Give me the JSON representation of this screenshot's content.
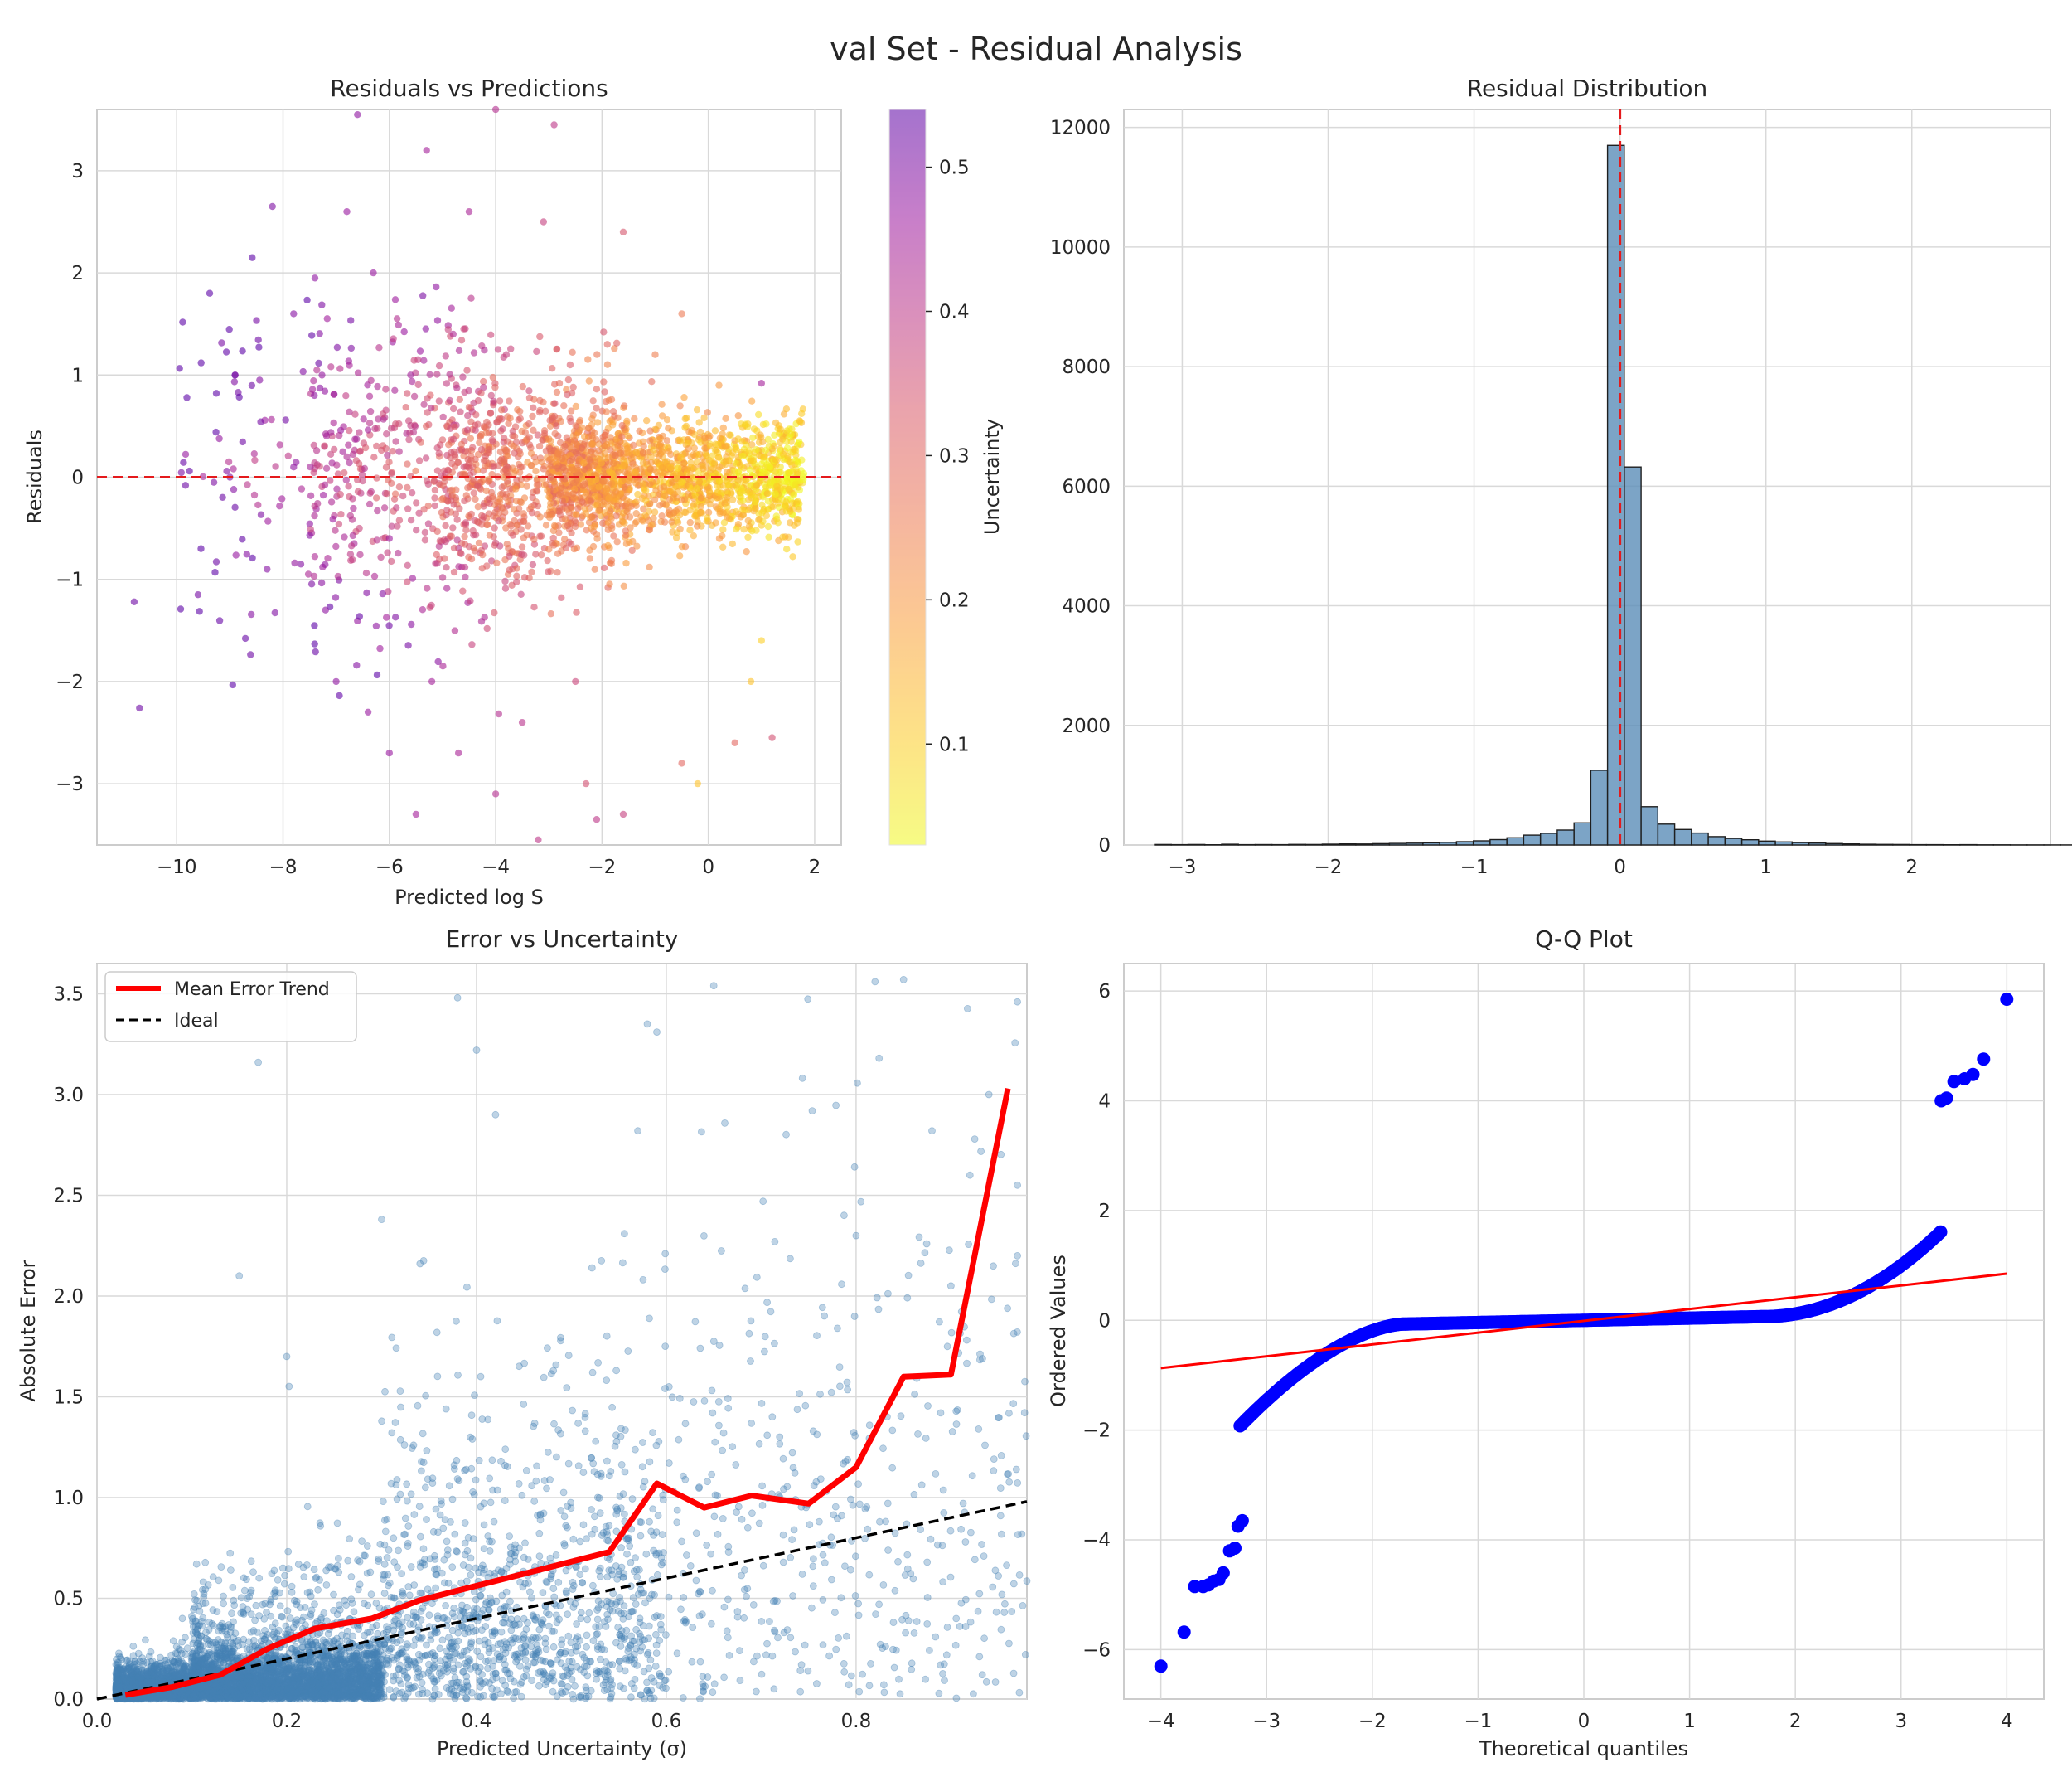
{
  "figure": {
    "suptitle": "val Set - Residual Analysis"
  },
  "chart_data": [
    {
      "type": "scatter",
      "id": "p1",
      "title": "Residuals vs Predictions",
      "xlabel": "Predicted log S",
      "ylabel": "Residuals",
      "xlim": [
        -11.5,
        2.5
      ],
      "ylim": [
        -3.6,
        3.6
      ],
      "xticks": [
        -10,
        -8,
        -6,
        -4,
        -2,
        0,
        2
      ],
      "yticks": [
        -3,
        -2,
        -1,
        0,
        1,
        2,
        3
      ],
      "grid": true,
      "reference_line": {
        "y": 0,
        "color": "#e41a1c",
        "style": "dashed"
      },
      "colorbar": {
        "label": "Uncertainty",
        "range": [
          0.03,
          0.54
        ],
        "ticks": [
          0.1,
          0.2,
          0.3,
          0.4,
          0.5
        ],
        "colormap": "plasma_r"
      },
      "points": [
        [
          -10.8,
          -1.22,
          0.52
        ],
        [
          -10.7,
          -2.26,
          0.52
        ],
        [
          -8.9,
          1.0,
          0.5
        ],
        [
          -8.2,
          2.65,
          0.5
        ],
        [
          -7.4,
          1.95,
          0.48
        ],
        [
          -6.3,
          2.0,
          0.47
        ],
        [
          -6.6,
          3.55,
          0.48
        ],
        [
          -7.8,
          1.6,
          0.49
        ],
        [
          -6.8,
          2.6,
          0.47
        ],
        [
          -5.3,
          3.2,
          0.45
        ],
        [
          -4.0,
          3.6,
          0.42
        ],
        [
          -2.9,
          3.45,
          0.4
        ],
        [
          -4.5,
          2.6,
          0.44
        ],
        [
          -3.1,
          2.5,
          0.38
        ],
        [
          -1.6,
          2.4,
          0.34
        ],
        [
          -5.6,
          1.0,
          0.45
        ],
        [
          -4.8,
          1.4,
          0.43
        ],
        [
          -3.8,
          1.2,
          0.38
        ],
        [
          -2.6,
          1.1,
          0.33
        ],
        [
          -1.9,
          1.3,
          0.3
        ],
        [
          -1.0,
          1.2,
          0.25
        ],
        [
          0.2,
          0.9,
          0.2
        ],
        [
          1.0,
          0.92,
          0.45
        ],
        [
          -0.5,
          1.6,
          0.26
        ],
        [
          -7.8,
          0.1,
          0.48
        ],
        [
          -9.0,
          0.0,
          0.5
        ],
        [
          -9.3,
          -0.05,
          0.5
        ],
        [
          -6.0,
          -0.6,
          0.46
        ],
        [
          -7.2,
          -1.3,
          0.48
        ],
        [
          -8.3,
          -0.9,
          0.49
        ],
        [
          -9.6,
          -1.15,
          0.51
        ],
        [
          -6.4,
          -2.3,
          0.47
        ],
        [
          -6.0,
          -2.7,
          0.47
        ],
        [
          -4.7,
          -2.7,
          0.44
        ],
        [
          -5.5,
          -3.3,
          0.45
        ],
        [
          -4.0,
          -3.1,
          0.42
        ],
        [
          -3.2,
          -3.55,
          0.4
        ],
        [
          -2.1,
          -3.35,
          0.4
        ],
        [
          -1.6,
          -3.3,
          0.38
        ],
        [
          -2.3,
          -3.0,
          0.35
        ],
        [
          -0.2,
          -3.0,
          0.12
        ],
        [
          -0.5,
          -2.8,
          0.3
        ],
        [
          0.5,
          -2.6,
          0.3
        ],
        [
          1.2,
          -2.55,
          0.35
        ],
        [
          0.8,
          -2.0,
          0.12
        ],
        [
          1.0,
          -1.6,
          0.1
        ],
        [
          -7.0,
          -2.0,
          0.48
        ],
        [
          -5.2,
          -2.0,
          0.45
        ],
        [
          -3.5,
          -2.4,
          0.41
        ],
        [
          -2.5,
          -2.0,
          0.37
        ]
      ],
      "density": {
        "core": [
          {
            "xr": [
              -3.0,
              1.8
            ],
            "yc": 0.0,
            "sd": 0.28,
            "n": 1500
          },
          {
            "xr": [
              -5.0,
              -1.5
            ],
            "yc": 0.0,
            "sd": 0.5,
            "n": 700
          },
          {
            "xr": [
              -7.5,
              -3.5
            ],
            "yc": 0.0,
            "sd": 0.75,
            "n": 380
          },
          {
            "xr": [
              -10.0,
              -5.5
            ],
            "yc": 0.0,
            "sd": 0.9,
            "n": 120
          }
        ]
      }
    },
    {
      "type": "bar",
      "id": "p2",
      "title": "Residual Distribution",
      "xlabel": "",
      "ylabel": "",
      "xlim": [
        -3.4,
        2.95
      ],
      "ylim": [
        0,
        12300
      ],
      "xticks": [
        -3,
        -2,
        -1,
        0,
        1,
        2
      ],
      "yticks": [
        0,
        2000,
        4000,
        6000,
        8000,
        10000,
        12000
      ],
      "grid": true,
      "bin_width": 0.115,
      "bin_start": -3.19,
      "counts": [
        8,
        6,
        8,
        4,
        12,
        5,
        7,
        6,
        10,
        9,
        14,
        18,
        16,
        22,
        26,
        30,
        36,
        45,
        55,
        70,
        90,
        120,
        165,
        195,
        250,
        370,
        1250,
        11700,
        6320,
        640,
        350,
        260,
        200,
        140,
        110,
        88,
        65,
        52,
        40,
        32,
        24,
        18,
        12,
        10,
        8,
        6,
        5,
        4,
        6,
        3,
        3,
        2,
        2,
        2,
        2
      ],
      "bar_color": "#5b8db8",
      "reference_line": {
        "x": 0,
        "color": "#e41a1c",
        "style": "dashed"
      }
    },
    {
      "type": "scatter",
      "id": "p3",
      "title": "Error vs Uncertainty",
      "xlabel": "Predicted Uncertainty (σ)",
      "ylabel": "Absolute Error",
      "xlim": [
        0.0,
        0.98
      ],
      "ylim": [
        0.0,
        3.65
      ],
      "xticks": [
        0.0,
        0.2,
        0.4,
        0.6,
        0.8
      ],
      "yticks": [
        0.0,
        0.5,
        1.0,
        1.5,
        2.0,
        2.5,
        3.0,
        3.5
      ],
      "grid": true,
      "legend": {
        "placement": "top-left",
        "entries": [
          "Mean Error Trend",
          "Ideal"
        ]
      },
      "series": [
        {
          "name": "Mean Error Trend",
          "color": "#ff0000",
          "x": [
            0.03,
            0.08,
            0.13,
            0.18,
            0.23,
            0.29,
            0.34,
            0.39,
            0.44,
            0.49,
            0.54,
            0.59,
            0.64,
            0.69,
            0.75,
            0.8,
            0.85,
            0.9,
            0.96
          ],
          "y": [
            0.02,
            0.06,
            0.12,
            0.25,
            0.35,
            0.4,
            0.49,
            0.55,
            0.61,
            0.67,
            0.73,
            1.07,
            0.95,
            1.01,
            0.97,
            1.15,
            1.6,
            1.61,
            3.03
          ]
        },
        {
          "name": "Ideal",
          "color": "#000000",
          "style": "dashed",
          "x": [
            0.0,
            0.98
          ],
          "y": [
            0.0,
            0.98
          ]
        }
      ],
      "points": [
        [
          0.17,
          3.16
        ],
        [
          0.38,
          3.48
        ],
        [
          0.58,
          3.35
        ],
        [
          0.82,
          3.56
        ],
        [
          0.85,
          3.57
        ],
        [
          0.97,
          3.46
        ],
        [
          0.65,
          3.54
        ],
        [
          0.59,
          3.31
        ],
        [
          0.94,
          3.0
        ],
        [
          0.97,
          2.55
        ],
        [
          0.92,
          2.6
        ],
        [
          0.88,
          2.82
        ],
        [
          0.57,
          2.82
        ],
        [
          0.4,
          3.22
        ],
        [
          0.42,
          2.9
        ],
        [
          0.8,
          2.3
        ],
        [
          0.97,
          2.2
        ],
        [
          0.9,
          2.05
        ],
        [
          0.3,
          2.38
        ],
        [
          0.2,
          1.7
        ],
        [
          0.15,
          2.1
        ],
        [
          0.09,
          0.4
        ]
      ],
      "point_density": [
        {
          "xr": [
            0.02,
            0.3
          ],
          "n": 4200,
          "scale": 0.12
        },
        {
          "xr": [
            0.1,
            0.6
          ],
          "n": 1500,
          "scale": 0.35
        },
        {
          "xr": [
            0.3,
            0.98
          ],
          "n": 900,
          "scale": 0.65
        }
      ]
    },
    {
      "type": "scatter",
      "id": "p4",
      "title": "Q-Q Plot",
      "xlabel": "Theoretical quantiles",
      "ylabel": "Ordered Values",
      "xlim": [
        -4.35,
        4.35
      ],
      "ylim": [
        -6.9,
        6.5
      ],
      "xticks": [
        -4,
        -3,
        -2,
        -1,
        0,
        1,
        2,
        3,
        4
      ],
      "yticks": [
        -6,
        -4,
        -2,
        0,
        2,
        4,
        6
      ],
      "grid": true,
      "fit_line": {
        "x": [
          -4.0,
          4.0
        ],
        "y": [
          -0.87,
          0.85
        ],
        "color": "#ff0000"
      },
      "tail_points": [
        [
          -4.0,
          -6.3
        ],
        [
          -3.78,
          -5.68
        ],
        [
          -3.68,
          -4.85
        ],
        [
          -3.6,
          -4.85
        ],
        [
          -3.55,
          -4.82
        ],
        [
          -3.5,
          -4.75
        ],
        [
          -3.45,
          -4.72
        ],
        [
          -3.41,
          -4.6
        ],
        [
          -3.35,
          -4.2
        ],
        [
          -3.3,
          -4.15
        ],
        [
          -3.27,
          -3.75
        ],
        [
          -3.23,
          -3.65
        ],
        [
          3.38,
          4.0
        ],
        [
          3.43,
          4.05
        ],
        [
          3.5,
          4.35
        ],
        [
          3.6,
          4.4
        ],
        [
          3.68,
          4.48
        ],
        [
          3.78,
          4.76
        ],
        [
          4.0,
          5.85
        ]
      ]
    }
  ]
}
